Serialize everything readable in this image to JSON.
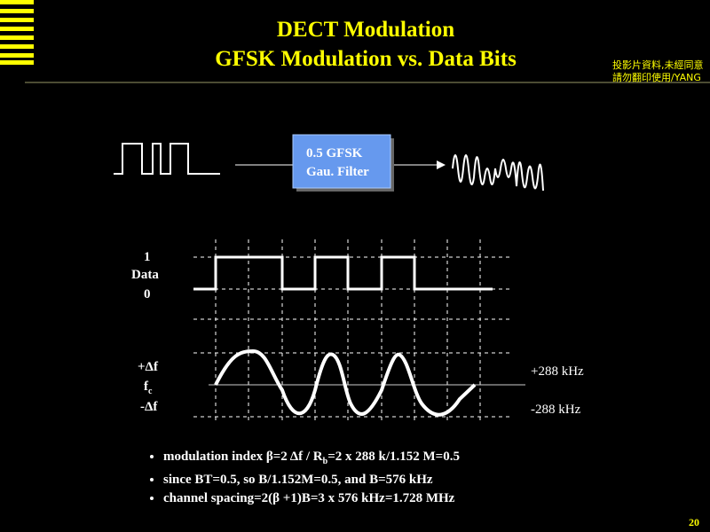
{
  "header": {
    "title": [
      "DECT Modulation",
      "GFSK Modulation vs. Data Bits"
    ],
    "note": [
      "投影片資料,未經同意",
      "請勿翻印使用/YANG"
    ]
  },
  "filter_box": [
    "0.5 GFSK",
    "Gau. Filter"
  ],
  "data_labels": [
    "1",
    "Data",
    "0"
  ],
  "freq_labels": {
    "plus": "+Δf",
    "center": {
      "main": "f",
      "sub": "c"
    },
    "minus": "-Δf"
  },
  "deviation_labels": [
    "+288 kHz",
    "-288 kHz"
  ],
  "bullets": [
    [
      "modulation index β=2 Δf / R",
      "b",
      "=2 x 288 k/1.152 M=0.5"
    ],
    [
      "since BT=0.5, so B/1.152M=0.5, and B=576 kHz"
    ],
    [
      "channel spacing=2(β +1)B=3 x 576 kHz=1.728 MHz"
    ]
  ],
  "page_number": "20"
}
